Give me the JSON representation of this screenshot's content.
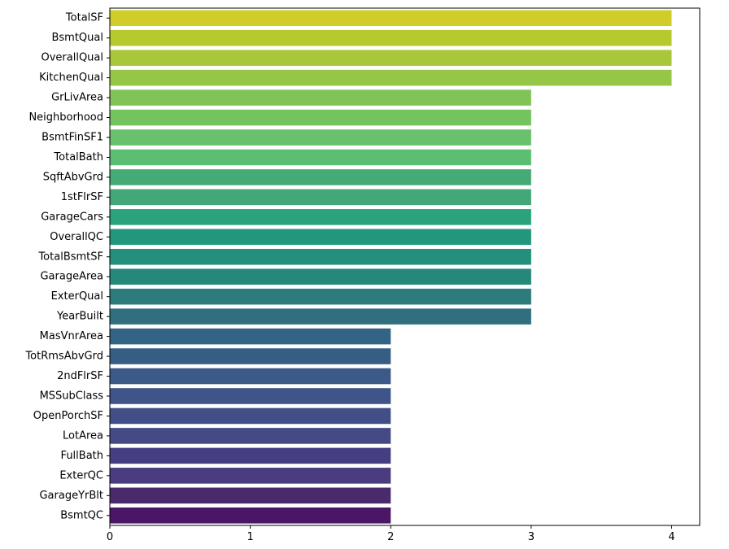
{
  "chart_data": {
    "type": "bar",
    "orientation": "horizontal",
    "categories": [
      "TotalSF",
      "BsmtQual",
      "OverallQual",
      "KitchenQual",
      "GrLivArea",
      "Neighborhood",
      "BsmtFinSF1",
      "TotalBath",
      "SqftAbvGrd",
      "1stFlrSF",
      "GarageCars",
      "OverallQC",
      "TotalBsmtSF",
      "GarageArea",
      "ExterQual",
      "YearBuilt",
      "MasVnrArea",
      "TotRmsAbvGrd",
      "2ndFlrSF",
      "MSSubClass",
      "OpenPorchSF",
      "LotArea",
      "FullBath",
      "ExterQC",
      "GarageYrBlt",
      "BsmtQC"
    ],
    "values": [
      4,
      4,
      4,
      4,
      3,
      3,
      3,
      3,
      3,
      3,
      3,
      3,
      3,
      3,
      3,
      3,
      2,
      2,
      2,
      2,
      2,
      2,
      2,
      2,
      2,
      2
    ],
    "colors": [
      "#d0cd2a",
      "#b8c92f",
      "#a9c73a",
      "#95c645",
      "#80c457",
      "#73c35e",
      "#68c16c",
      "#5cbe73",
      "#45aa75",
      "#43a777",
      "#2ba27c",
      "#22977c",
      "#248f7c",
      "#26877b",
      "#2e7b7c",
      "#316f7f",
      "#336486",
      "#365e84",
      "#3b5a88",
      "#3f5489",
      "#424e87",
      "#454a85",
      "#463e83",
      "#4a3c7e",
      "#4a2a6a",
      "#4b1665"
    ],
    "xlim": [
      0,
      4.2
    ],
    "xticks": [
      0,
      1,
      2,
      3,
      4
    ],
    "xlabel": "",
    "ylabel": "",
    "title": "",
    "grid": false,
    "legend": "none"
  }
}
